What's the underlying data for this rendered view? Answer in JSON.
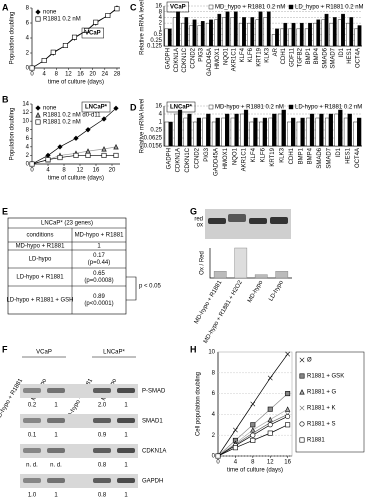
{
  "chart_data": [
    {
      "type": "line",
      "panel": "A",
      "cell_line": "VCaP",
      "xlabel": "time of culture (days)",
      "ylabel": "Population doubling",
      "x": [
        0,
        4,
        7,
        11,
        14,
        18,
        21,
        25,
        28
      ],
      "xlim": [
        0,
        29
      ],
      "xticks": [
        0,
        4,
        8,
        12,
        16,
        20,
        24,
        28
      ],
      "ylim": [
        0,
        8
      ],
      "yticks": [
        0,
        2,
        4,
        6,
        8
      ],
      "legend": "upper left",
      "series": [
        {
          "name": "none",
          "color": "#000000",
          "marker": "diamond",
          "values": [
            0,
            1,
            2,
            3,
            4,
            5,
            6,
            7,
            8
          ]
        },
        {
          "name": "R1881 0.2 nM",
          "color": "#ffffff",
          "marker": "square",
          "values": [
            0,
            1,
            2.1,
            3,
            4.1,
            5,
            6.1,
            7,
            7.9
          ]
        }
      ]
    },
    {
      "type": "line",
      "panel": "B",
      "cell_line": "LNCaP*",
      "xlabel": "time of culture (days)",
      "ylabel": "Population doubling",
      "x": [
        0,
        4,
        7,
        11,
        14,
        18,
        21
      ],
      "xlim": [
        0,
        22
      ],
      "xticks": [
        0,
        4,
        8,
        12,
        16,
        20
      ],
      "ylim": [
        0,
        14
      ],
      "yticks": [
        0,
        2,
        4,
        6,
        8,
        10,
        12,
        14
      ],
      "legend": "upper left",
      "series": [
        {
          "name": "none",
          "color": "#000000",
          "marker": "diamond",
          "values": [
            0,
            2,
            4,
            6,
            8,
            10.5,
            13
          ]
        },
        {
          "name": "R1881 0.2 nM d0-d11",
          "color": "#999999",
          "marker": "triangle",
          "values": [
            0,
            1,
            2,
            2.5,
            3,
            3.5,
            4
          ]
        },
        {
          "name": "R1881 0.2 nM",
          "color": "#ffffff",
          "marker": "square",
          "values": [
            0,
            1,
            1.5,
            2,
            2,
            2,
            2
          ]
        }
      ]
    },
    {
      "type": "bar",
      "panel": "C",
      "cell_line": "VCaP",
      "ylabel": "Relative mRNA levels",
      "log": true,
      "grid": true,
      "ylim": [
        0.125,
        16
      ],
      "yticks": [
        0.125,
        0.25,
        0.5,
        1,
        2,
        4,
        8,
        16
      ],
      "categories": [
        "GADPH",
        "CDKN1A",
        "CDKN1C",
        "CCND2",
        "PIG3",
        "GADD45A",
        "HMOX1",
        "NQO1",
        "AKR1C1",
        "KLF4",
        "KLF6",
        "KRT19",
        "KLK3",
        "AR",
        "CDH1",
        "GDF11",
        "TGFB2",
        "BMP1",
        "BMP4",
        "SMAD6",
        "SMAD7",
        "ID1",
        "HES1",
        "OCT4A"
      ],
      "series": [
        {
          "name": "MD_hypo + R1881 0.2 nM",
          "color": "#ffffff",
          "values": [
            1,
            4,
            2,
            1.5,
            1.5,
            2,
            3,
            4,
            4,
            2,
            2,
            3,
            4,
            0.5,
            1,
            1,
            1,
            1,
            2,
            3,
            2,
            3,
            2,
            1
          ]
        },
        {
          "name": "LD_hypo + R1881 0.2 nM",
          "color": "#000000",
          "values": [
            1,
            8,
            4,
            3,
            2.5,
            3,
            6,
            8,
            8,
            4,
            4,
            8,
            8,
            1,
            2,
            2,
            2,
            2,
            3,
            6,
            4,
            6,
            4,
            1.5
          ]
        }
      ]
    },
    {
      "type": "bar",
      "panel": "D",
      "cell_line": "LNCaP*",
      "ylabel": "Relative mRNA level",
      "log": true,
      "grid": true,
      "ylim": [
        0.015625,
        16
      ],
      "yticks": [
        {
          "value": 0.015625,
          "label": "0.0156"
        },
        0.0625,
        0.25,
        1,
        4,
        16
      ],
      "categories": [
        "GADPH",
        "CDKN1A",
        "CDKN1C",
        "CCND2",
        "PIG3",
        "GADD45A",
        "HMOX1",
        "NQO1",
        "AKR1C1",
        "KLF4",
        "KLF6",
        "KRT19",
        "KLK3",
        "CDH1",
        "BMP1",
        "BMP4",
        "SMAD6",
        "SMAD7",
        "ID1",
        "HES1",
        "OCT4A"
      ],
      "series": [
        {
          "name": "MD-hypo + R1881 0.2 nM",
          "color": "#ffffff",
          "values": [
            1,
            4,
            2,
            1,
            2,
            1,
            2,
            2,
            4,
            1,
            1,
            2,
            4,
            1,
            1,
            2,
            2,
            2,
            4,
            2,
            1
          ]
        },
        {
          "name": "LD-hypo + R1881 0.2 nM",
          "color": "#000000",
          "values": [
            1,
            8,
            4,
            2,
            4,
            2,
            4,
            4,
            8,
            2,
            2,
            4,
            8,
            2,
            2,
            4,
            4,
            4,
            8,
            4,
            2
          ]
        }
      ]
    },
    {
      "type": "simplebar",
      "ylabel": "Ox / Red",
      "categories": [
        "MD-hypo + R1881",
        "MD-hypo + R1881 + H2O2",
        "MD-hypo",
        "LD-hypo"
      ],
      "values": [
        0.2,
        0.9,
        0.1,
        0.2
      ],
      "colors": [
        "#bbbbbb",
        "#dddddd",
        "#bbbbbb",
        "#bbbbbb"
      ]
    },
    {
      "type": "line",
      "panel": "H",
      "xlabel": "time of culture (days)",
      "ylabel": "Cell population doubling",
      "x": [
        0,
        4,
        8,
        12,
        16
      ],
      "xlim": [
        0,
        17
      ],
      "xticks": [
        0,
        4,
        8,
        12,
        16
      ],
      "ylim": [
        0,
        10
      ],
      "yticks": [
        0,
        2,
        4,
        6,
        8,
        10
      ],
      "grid": true,
      "legend": "right",
      "series": [
        {
          "name": "Ø",
          "color": "#000000",
          "marker": "x",
          "values": [
            0,
            2.5,
            5,
            7.5,
            9.8
          ]
        },
        {
          "name": "R1881 + GSK",
          "color": "#888888",
          "marker": "square",
          "values": [
            0,
            1.5,
            3,
            4.5,
            6
          ]
        },
        {
          "name": "R1881 + G",
          "color": "#aaaaaa",
          "marker": "triangle",
          "values": [
            0,
            1.2,
            2.5,
            3.5,
            4.5
          ]
        },
        {
          "name": "R1881 + K",
          "color": "#666666",
          "marker": "x",
          "values": [
            0,
            1.1,
            2.2,
            3.2,
            4
          ]
        },
        {
          "name": "R1881 + S",
          "color": "#ffffff",
          "marker": "circle",
          "values": [
            0,
            1,
            2,
            3,
            3.8
          ]
        },
        {
          "name": "R1881",
          "color": "#ffffff",
          "marker": "square",
          "values": [
            0,
            0.8,
            1.5,
            2.2,
            3
          ]
        }
      ]
    }
  ],
  "table_e": {
    "panel": "E",
    "title": "LNCaP* (23 genes)",
    "header": [
      "conditions",
      "MD-hypo + R1881"
    ],
    "rows": [
      {
        "condition": "MD-hypo + R1881",
        "value": "1"
      },
      {
        "condition": "LD-hypo",
        "value": "0.17",
        "p": "(p=0.44)"
      },
      {
        "condition": "LD-hypo + R1881",
        "value": "0.65",
        "p": "(p=0.0008)"
      },
      {
        "condition": "LD-hypo + R1881 + GSH",
        "value": "0.89",
        "p": "(p<0.0001)"
      }
    ],
    "annotation": "p < 0.05"
  },
  "blot_f": {
    "panel": "F",
    "groups": [
      "VCaP",
      "LNCaP*"
    ],
    "lanes": [
      "MD-hypo + R1881",
      "MD-hypo",
      "MD-hypo + R1881",
      "MD-hypo"
    ],
    "rows": [
      {
        "name": "P-SMAD",
        "values": [
          "0.2",
          "1",
          "2.0",
          "1"
        ]
      },
      {
        "name": "SMAD1",
        "values": [
          "0.1",
          "1",
          "0.9",
          "1"
        ]
      },
      {
        "name": "CDKN1A",
        "values": [
          "n. d.",
          "n. d.",
          "0.8",
          "1"
        ]
      },
      {
        "name": "GAPDH",
        "values": [
          "1.0",
          "1",
          "0.8",
          "1"
        ]
      }
    ]
  },
  "blot_g": {
    "panel": "G",
    "bands": [
      "red",
      "ox"
    ]
  }
}
